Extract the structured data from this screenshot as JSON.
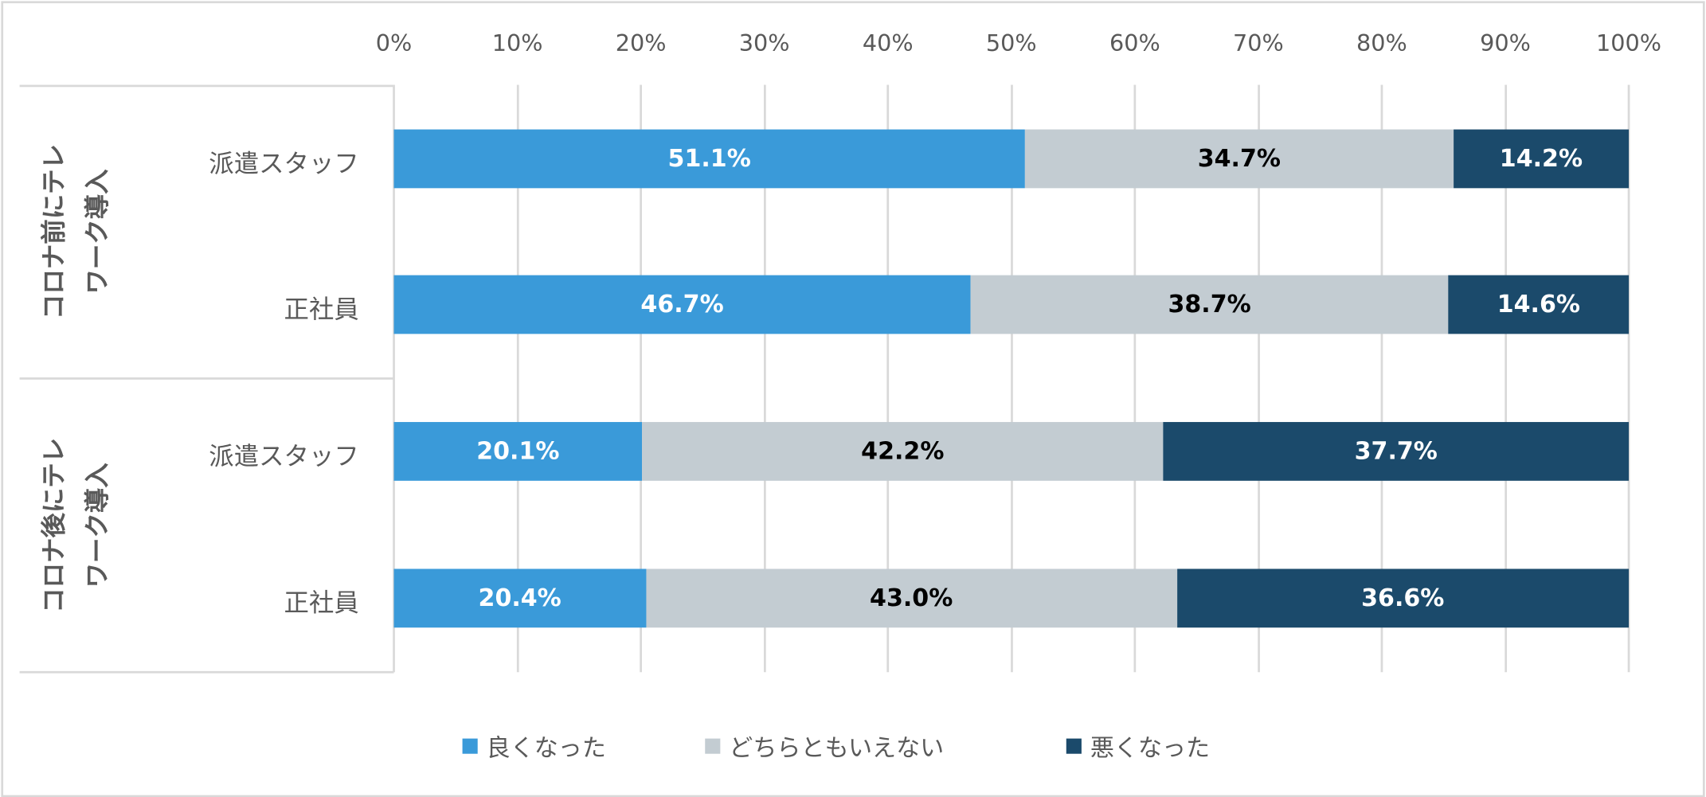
{
  "chart_data": {
    "type": "bar",
    "orientation": "horizontal",
    "stacked": "percent",
    "xlim": [
      0,
      100
    ],
    "ticks": [
      "0%",
      "10%",
      "20%",
      "30%",
      "40%",
      "50%",
      "60%",
      "70%",
      "80%",
      "90%",
      "100%"
    ],
    "groups": [
      {
        "label_lines": [
          "コロナ前にテレ",
          "ワーク導入"
        ],
        "rows": [
          {
            "label": "派遣スタッフ",
            "values": [
              51.1,
              34.7,
              14.2
            ],
            "labels": [
              "51.1%",
              "34.7%",
              "14.2%"
            ]
          },
          {
            "label": "正社員",
            "values": [
              46.7,
              38.7,
              14.6
            ],
            "labels": [
              "46.7%",
              "38.7%",
              "14.6%"
            ]
          }
        ]
      },
      {
        "label_lines": [
          "コロナ後にテレ",
          "ワーク導入"
        ],
        "rows": [
          {
            "label": "派遣スタッフ",
            "values": [
              20.1,
              42.2,
              37.7
            ],
            "labels": [
              "20.1%",
              "42.2%",
              "37.7%"
            ]
          },
          {
            "label": "正社員",
            "values": [
              20.4,
              43.0,
              36.6
            ],
            "labels": [
              "20.4%",
              "43.0%",
              "36.6%"
            ]
          }
        ]
      }
    ],
    "series": [
      {
        "name": "良くなった",
        "color": "#3A9AD9",
        "text_color": "#FFFFFF"
      },
      {
        "name": "どちらともいえない",
        "color": "#C3CCD2",
        "text_color": "#000000"
      },
      {
        "name": "悪くなった",
        "color": "#1B4A6B",
        "text_color": "#FFFFFF"
      }
    ],
    "legend": "bottom",
    "grid": true
  }
}
